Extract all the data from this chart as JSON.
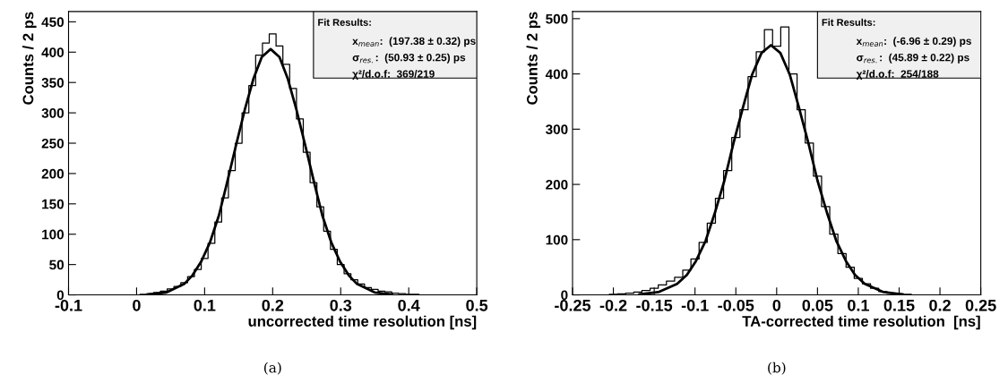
{
  "chart_data": [
    {
      "type": "step",
      "xlabel": "uncorrected time resolution [ns]",
      "ylabel": "Counts / 2 ps",
      "xlim": [
        -0.1,
        0.5
      ],
      "ylim": [
        0,
        467
      ],
      "xticks": [
        -0.1,
        0,
        0.1,
        0.2,
        0.3,
        0.4,
        0.5
      ],
      "yticks": [
        0,
        50,
        100,
        150,
        200,
        250,
        300,
        350,
        400,
        450
      ],
      "grid": false,
      "legend": false,
      "annotations": [
        "Fit Results:",
        "x$_{mean}$:  (197.38 ± 0.32) ps",
        "σ$_{res.}$:  (50.93 ± 0.25) ps",
        "χ²/d.o.f:  369/219",
        "(a)"
      ],
      "series": [
        {
          "color": "#000000",
          "x": [
            -0.1,
            -0.09,
            -0.08,
            -0.07,
            -0.06,
            -0.05,
            -0.04,
            -0.03,
            -0.02,
            -0.01,
            0.0,
            0.01,
            0.02,
            0.03,
            0.04,
            0.05,
            0.06,
            0.07,
            0.08,
            0.09,
            0.1,
            0.11,
            0.12,
            0.13,
            0.14,
            0.15,
            0.16,
            0.17,
            0.18,
            0.19,
            0.2,
            0.21,
            0.22,
            0.23,
            0.24,
            0.25,
            0.26,
            0.27,
            0.28,
            0.29,
            0.3,
            0.31,
            0.32,
            0.33,
            0.34,
            0.35,
            0.36,
            0.37,
            0.38,
            0.39,
            0.4,
            0.41,
            0.42,
            0.43,
            0.44,
            0.45,
            0.46,
            0.47,
            0.48,
            0.49
          ],
          "values": [
            0,
            0,
            0,
            0,
            0,
            0,
            0,
            0,
            0,
            0,
            0,
            1,
            2,
            4,
            6,
            10,
            14,
            20,
            30,
            42,
            60,
            85,
            120,
            160,
            205,
            250,
            300,
            345,
            395,
            415,
            430,
            410,
            380,
            340,
            290,
            235,
            185,
            145,
            105,
            75,
            50,
            35,
            25,
            18,
            12,
            9,
            6,
            5,
            3,
            2,
            1,
            1,
            0,
            0,
            0,
            0,
            0,
            0,
            0,
            0
          ]
        },
        {
          "type": "line",
          "color": "#000000",
          "x": [
            0.019,
            0.044,
            0.07,
            0.082,
            0.095,
            0.108,
            0.121,
            0.133,
            0.146,
            0.159,
            0.172,
            0.184,
            0.197,
            0.21,
            0.222,
            0.235,
            0.248,
            0.261,
            0.273,
            0.286,
            0.299,
            0.312,
            0.324,
            0.35,
            0.375
          ],
          "values": [
            1,
            4,
            18,
            32,
            55,
            87,
            131,
            185,
            246,
            305,
            357,
            392,
            405,
            392,
            357,
            305,
            246,
            185,
            131,
            87,
            55,
            32,
            18,
            4,
            1
          ]
        }
      ]
    },
    {
      "type": "step",
      "xlabel": "TA-corrected time resolution  [ns]",
      "ylabel": "Counts / 2 ps",
      "xlim": [
        -0.25,
        0.25
      ],
      "ylim": [
        0,
        513
      ],
      "xticks": [
        -0.25,
        -0.2,
        -0.15,
        -0.1,
        -0.05,
        0,
        0.05,
        0.1,
        0.15,
        0.2,
        0.25
      ],
      "yticks": [
        0,
        100,
        200,
        300,
        400,
        500
      ],
      "grid": false,
      "legend": false,
      "annotations": [
        "Fit Results:",
        "x$_{mean}$:  (-6.96 ± 0.29) ps",
        "σ$_{res.}$:  (45.89 ± 0.22) ps",
        "χ²/d.o.f:  254/188",
        "(b)"
      ],
      "series": [
        {
          "color": "#000000",
          "x": [
            -0.25,
            -0.24,
            -0.23,
            -0.22,
            -0.21,
            -0.2,
            -0.19,
            -0.18,
            -0.17,
            -0.16,
            -0.15,
            -0.14,
            -0.13,
            -0.12,
            -0.11,
            -0.1,
            -0.09,
            -0.08,
            -0.07,
            -0.06,
            -0.05,
            -0.04,
            -0.03,
            -0.02,
            -0.01,
            0.0,
            0.01,
            0.02,
            0.03,
            0.04,
            0.05,
            0.06,
            0.07,
            0.08,
            0.09,
            0.1,
            0.11,
            0.12,
            0.13,
            0.14,
            0.15,
            0.16,
            0.17,
            0.18,
            0.19,
            0.2,
            0.21,
            0.22,
            0.23,
            0.24
          ],
          "values": [
            0,
            0,
            0,
            0,
            0,
            1,
            2,
            3,
            5,
            8,
            12,
            18,
            25,
            32,
            45,
            65,
            95,
            130,
            175,
            225,
            285,
            335,
            395,
            440,
            480,
            450,
            485,
            400,
            335,
            275,
            215,
            160,
            110,
            75,
            50,
            30,
            20,
            12,
            6,
            3,
            2,
            1,
            0,
            0,
            0,
            0,
            0,
            0,
            0,
            0
          ]
        },
        {
          "type": "line",
          "color": "#000000",
          "x": [
            -0.168,
            -0.145,
            -0.122,
            -0.11,
            -0.099,
            -0.087,
            -0.076,
            -0.064,
            -0.053,
            -0.041,
            -0.03,
            -0.0185,
            -0.007,
            0.0045,
            0.016,
            0.027,
            0.039,
            0.05,
            0.062,
            0.073,
            0.085,
            0.096,
            0.108,
            0.131,
            0.154
          ],
          "values": [
            1,
            5,
            20,
            36,
            61,
            98,
            147,
            207,
            274,
            341,
            399,
            438,
            452,
            438,
            399,
            341,
            274,
            207,
            147,
            98,
            61,
            36,
            20,
            5,
            1
          ]
        }
      ]
    }
  ]
}
